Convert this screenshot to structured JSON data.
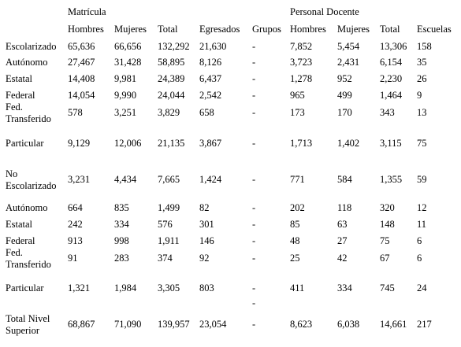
{
  "table": {
    "group_headers": {
      "matricula": "Matrícula",
      "personal_docente": "Personal Docente"
    },
    "columns": [
      "Hombres",
      "Mujeres",
      "Total",
      "Egresados",
      "Grupos",
      "Hombres",
      "Mujeres",
      "Total",
      "Escuelas"
    ],
    "rows": [
      {
        "label": "Escolarizado",
        "cells": [
          "65,636",
          "66,656",
          "132,292",
          "21,630",
          "-",
          "7,852",
          "5,454",
          "13,306",
          "158"
        ]
      },
      {
        "label": "Autónomo",
        "cells": [
          "27,467",
          "31,428",
          "58,895",
          "8,126",
          "-",
          "3,723",
          "2,431",
          "6,154",
          "35"
        ]
      },
      {
        "label": "Estatal",
        "cells": [
          "14,408",
          "9,981",
          "24,389",
          "6,437",
          "-",
          "1,278",
          "952",
          "2,230",
          "26"
        ]
      },
      {
        "label": "Federal",
        "cells": [
          "14,054",
          "9,990",
          "24,044",
          "2,542",
          "-",
          "965",
          "499",
          "1,464",
          "9"
        ]
      },
      {
        "label": "Fed.\nTransferido",
        "cells": [
          "578",
          "3,251",
          "3,829",
          "658",
          "-",
          "173",
          "170",
          "343",
          "13"
        ]
      },
      {
        "label": "Particular",
        "cells": [
          "9,129",
          "12,006",
          "21,135",
          "3,867",
          "-",
          "1,713",
          "1,402",
          "3,115",
          "75"
        ]
      },
      {
        "label": "No\nEscolarizado",
        "cells": [
          "3,231",
          "4,434",
          "7,665",
          "1,424",
          "-",
          "771",
          "584",
          "1,355",
          "59"
        ]
      },
      {
        "label": "Autónomo",
        "cells": [
          "664",
          "835",
          "1,499",
          "82",
          "-",
          "202",
          "118",
          "320",
          "12"
        ]
      },
      {
        "label": "Estatal",
        "cells": [
          "242",
          "334",
          "576",
          "301",
          "-",
          "85",
          "63",
          "148",
          "11"
        ]
      },
      {
        "label": "Federal",
        "cells": [
          "913",
          "998",
          "1,911",
          "146",
          "-",
          "48",
          "27",
          "75",
          "6"
        ]
      },
      {
        "label": "Fed.\nTransferido",
        "cells": [
          "91",
          "283",
          "374",
          "92",
          "-",
          "25",
          "42",
          "67",
          "6"
        ]
      },
      {
        "label": "Particular",
        "cells": [
          "1,321",
          "1,984",
          "3,305",
          "803",
          "-",
          "411",
          "334",
          "745",
          "24"
        ]
      },
      {
        "label": "",
        "cells": [
          "",
          "",
          "",
          "",
          "-",
          "",
          "",
          "",
          ""
        ]
      },
      {
        "label": "Total Nivel\nSuperior",
        "cells": [
          "68,867",
          "71,090",
          "139,957",
          "23,054",
          "-",
          "8,623",
          "6,038",
          "14,661",
          "217"
        ]
      }
    ]
  }
}
